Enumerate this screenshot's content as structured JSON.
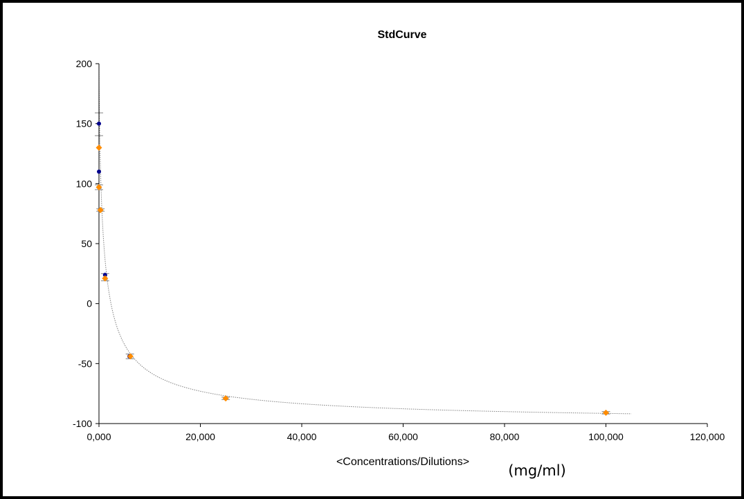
{
  "chart_data": {
    "type": "scatter",
    "title": "StdCurve",
    "xlabel": "<Concentrations/Dilutions>",
    "xunit": "(mg/ml)",
    "ylabel": "",
    "xlim": [
      0,
      120000
    ],
    "ylim": [
      -100,
      200
    ],
    "x_ticks": [
      0,
      20000,
      40000,
      60000,
      80000,
      100000,
      120000
    ],
    "x_tick_labels": [
      "0,000",
      "20,000",
      "40,000",
      "60,000",
      "80,000",
      "100,000",
      "120,000"
    ],
    "y_ticks": [
      -100,
      -50,
      0,
      50,
      100,
      150,
      200
    ],
    "y_tick_labels": [
      "-100",
      "-50",
      "0",
      "50",
      "100",
      "150",
      "200"
    ],
    "grid": false,
    "legend": "none",
    "series": [
      {
        "marker": "circle",
        "color": "#00008B",
        "points": [
          {
            "x": 0,
            "y": 150
          },
          {
            "x": 0,
            "y": 110
          },
          {
            "x": 1200,
            "y": 24
          },
          {
            "x": 6000,
            "y": -44
          }
        ]
      },
      {
        "marker": "diamond",
        "color": "#FF8C00",
        "points": [
          {
            "x": 0,
            "y": 130
          },
          {
            "x": 0,
            "y": 97
          },
          {
            "x": 300,
            "y": 78
          },
          {
            "x": 1200,
            "y": 21
          },
          {
            "x": 6200,
            "y": -44
          },
          {
            "x": 25000,
            "y": -79
          },
          {
            "x": 100000,
            "y": -91
          }
        ]
      }
    ],
    "error_bars": [
      {
        "x": 0,
        "ylow": 140,
        "yhigh": 159
      },
      {
        "x": 0,
        "ylow": 95,
        "yhigh": 99
      },
      {
        "x": 300,
        "ylow": 77,
        "yhigh": 79
      },
      {
        "x": 1200,
        "ylow": 19,
        "yhigh": 25
      },
      {
        "x": 6100,
        "ylow": -46,
        "yhigh": -42
      },
      {
        "x": 25000,
        "ylow": -80,
        "yhigh": -78
      },
      {
        "x": 100000,
        "ylow": -92,
        "yhigh": -90
      }
    ],
    "fit_curve": {
      "style": "dotted",
      "color": "#808080",
      "x_range": [
        0,
        105000
      ],
      "asymptote_bottom": -100,
      "top": 200,
      "ec50": 950,
      "slope": 0.76
    }
  }
}
